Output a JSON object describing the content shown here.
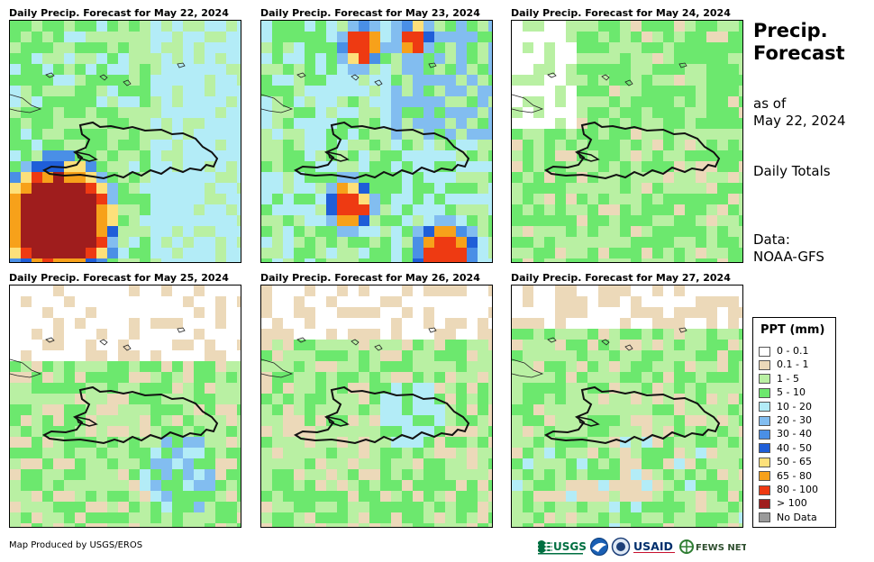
{
  "panels": [
    {
      "title": "Daily Precip. Forecast for May 22, 2024",
      "scenario": "d22"
    },
    {
      "title": "Daily Precip. Forecast for May 23, 2024",
      "scenario": "d23"
    },
    {
      "title": "Daily Precip. Forecast for May 24, 2024",
      "scenario": "d24"
    },
    {
      "title": "Daily Precip. Forecast for May 25, 2024",
      "scenario": "d25"
    },
    {
      "title": "Daily Precip. Forecast for May 26, 2024",
      "scenario": "d26"
    },
    {
      "title": "Daily Precip. Forecast for May 27, 2024",
      "scenario": "d27"
    }
  ],
  "side": {
    "title_line1": "Precip.",
    "title_line2": "Forecast",
    "asof_line1": "as of",
    "asof_line2": "May 22, 2024",
    "totals": "Daily Totals",
    "data_line1": "Data:",
    "data_line2": "NOAA-GFS"
  },
  "legend": {
    "title": "PPT (mm)",
    "items": [
      {
        "label": "0 - 0.1",
        "color": "#ffffff"
      },
      {
        "label": "0.1 - 1",
        "color": "#ecd9b9"
      },
      {
        "label": "1 - 5",
        "color": "#b9f0a3"
      },
      {
        "label": "5 - 10",
        "color": "#6ce86e"
      },
      {
        "label": "10 - 20",
        "color": "#b3ecf7"
      },
      {
        "label": "20 - 30",
        "color": "#82bdf0"
      },
      {
        "label": "30 - 40",
        "color": "#4a8fe6"
      },
      {
        "label": "40 - 50",
        "color": "#1f5ed8"
      },
      {
        "label": "50 - 65",
        "color": "#fde07a"
      },
      {
        "label": "65 - 80",
        "color": "#f7a11a"
      },
      {
        "label": "80 - 100",
        "color": "#ee3a12"
      },
      {
        "label": "> 100",
        "color": "#9f1d1d"
      },
      {
        "label": "No Data",
        "color": "#9a9a9a"
      }
    ]
  },
  "footer": {
    "credit": "Map Produced by USGS/EROS",
    "logo_usgs": "USGS",
    "logo_usaid": "USAID",
    "logo_fews": "FEWS NET"
  }
}
